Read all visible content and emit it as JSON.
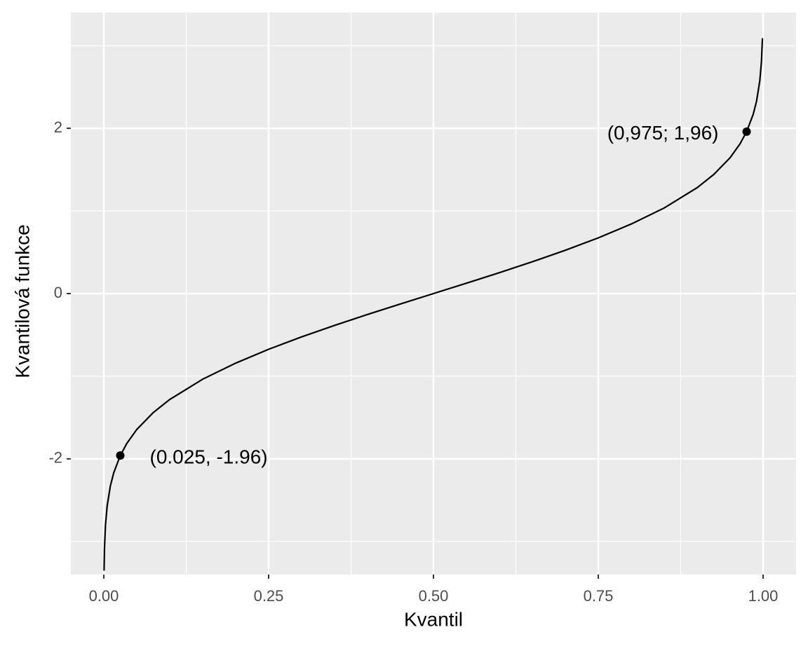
{
  "chart_data": {
    "type": "line",
    "x_label": "Kvantil",
    "y_label": "Kvantilová funkce",
    "x": [
      0.0004,
      0.001,
      0.0025,
      0.005,
      0.01,
      0.015,
      0.025,
      0.035,
      0.05,
      0.075,
      0.1,
      0.15,
      0.2,
      0.25,
      0.3,
      0.35,
      0.4,
      0.45,
      0.5,
      0.55,
      0.6,
      0.65,
      0.7,
      0.75,
      0.8,
      0.85,
      0.9,
      0.925,
      0.95,
      0.965,
      0.975,
      0.985,
      0.99,
      0.995,
      0.9975,
      0.999
    ],
    "values": [
      -3.353,
      -3.09,
      -2.807,
      -2.576,
      -2.326,
      -2.17,
      -1.96,
      -1.812,
      -1.645,
      -1.44,
      -1.282,
      -1.036,
      -0.842,
      -0.674,
      -0.524,
      -0.385,
      -0.253,
      -0.126,
      0,
      0.126,
      0.253,
      0.385,
      0.524,
      0.674,
      0.842,
      1.036,
      1.282,
      1.44,
      1.645,
      1.812,
      1.96,
      2.17,
      2.326,
      2.576,
      2.807,
      3.09
    ],
    "color": "#000000",
    "points": {
      "x": [
        0.025,
        0.975
      ],
      "values": [
        -1.96,
        1.96
      ]
    },
    "annotations": [
      {
        "text": "(0.025, -1.96)"
      },
      {
        "text": "(0,975; 1,96)"
      }
    ],
    "xlim": [
      -0.05,
      1.05
    ],
    "ylim": [
      -3.4,
      3.4
    ],
    "xticks": [
      {
        "value": 0,
        "label": "0.00"
      },
      {
        "value": 0.25,
        "label": "0.25"
      },
      {
        "value": 0.5,
        "label": "0.50"
      },
      {
        "value": 0.75,
        "label": "0.75"
      },
      {
        "value": 1,
        "label": "1.00"
      }
    ],
    "yticks": [
      -2,
      0,
      2
    ],
    "x_minor_grid": [
      0.125,
      0.375,
      0.625,
      0.875
    ],
    "y_minor_grid": [
      -3,
      -1,
      1,
      3
    ],
    "grid": true
  }
}
